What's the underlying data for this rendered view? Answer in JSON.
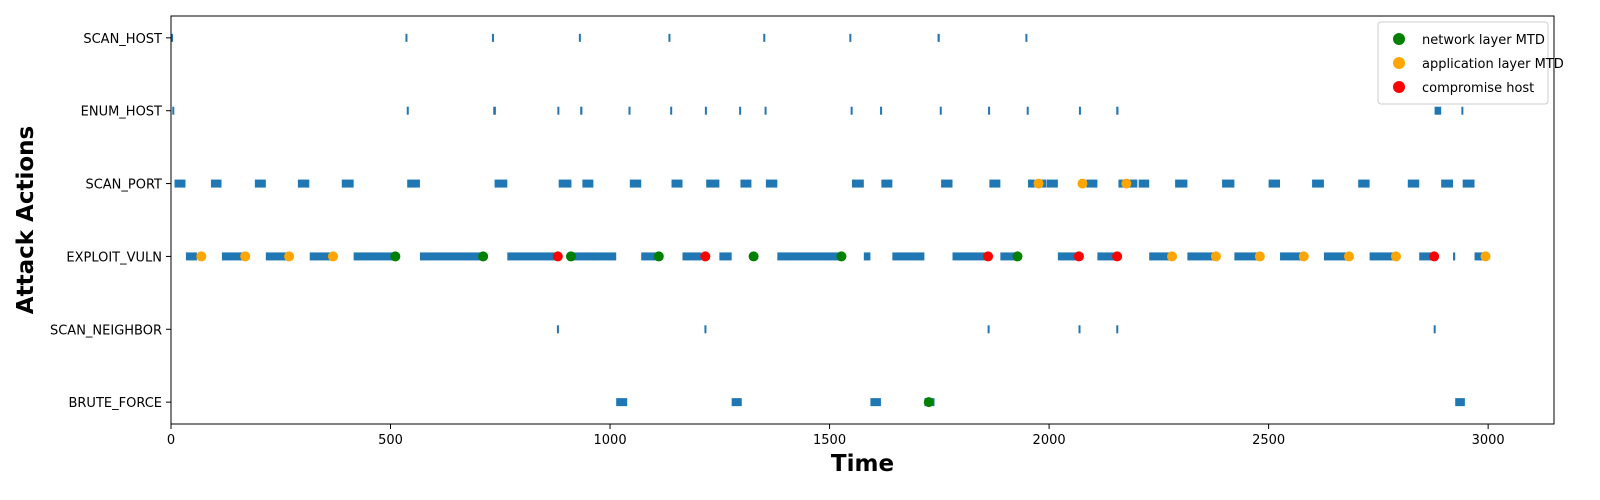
{
  "chart_data": {
    "type": "scatter",
    "xlabel": "Time",
    "ylabel": "Attack Actions",
    "xlim": [
      0,
      3150
    ],
    "x_ticks": [
      0,
      500,
      1000,
      1500,
      2000,
      2500,
      3000
    ],
    "categories": [
      "SCAN_HOST",
      "ENUM_HOST",
      "SCAN_PORT",
      "EXPLOIT_VULN",
      "SCAN_NEIGHBOR",
      "BRUTE_FORCE"
    ],
    "grid": false,
    "legend_position": "top-right",
    "action_color": "#1f77b4",
    "action_intervals": [
      {
        "action": "SCAN_HOST",
        "segments": [
          [
            0,
            3
          ],
          [
            534,
            537
          ],
          [
            731,
            734
          ],
          [
            929,
            932
          ],
          [
            1133,
            1137
          ],
          [
            1349,
            1352
          ],
          [
            1545,
            1548
          ],
          [
            1746,
            1751
          ],
          [
            1946,
            1949
          ]
        ]
      },
      {
        "action": "ENUM_HOST",
        "segments": [
          [
            3,
            7
          ],
          [
            537,
            540
          ],
          [
            734,
            740
          ],
          [
            880,
            883
          ],
          [
            932,
            937
          ],
          [
            1042,
            1045
          ],
          [
            1137,
            1140
          ],
          [
            1216,
            1219
          ],
          [
            1294,
            1297
          ],
          [
            1352,
            1355
          ],
          [
            1548,
            1551
          ],
          [
            1615,
            1618
          ],
          [
            1751,
            1754
          ],
          [
            1861,
            1864
          ],
          [
            1949,
            1952
          ],
          [
            2068,
            2071
          ],
          [
            2153,
            2158
          ],
          [
            2878,
            2893
          ],
          [
            2939,
            2942
          ]
        ]
      },
      {
        "action": "SCAN_PORT",
        "segments": [
          [
            8,
            33
          ],
          [
            91,
            115
          ],
          [
            191,
            216
          ],
          [
            289,
            315
          ],
          [
            389,
            416
          ],
          [
            538,
            567
          ],
          [
            737,
            766
          ],
          [
            883,
            912
          ],
          [
            937,
            962
          ],
          [
            1045,
            1071
          ],
          [
            1140,
            1165
          ],
          [
            1219,
            1249
          ],
          [
            1297,
            1322
          ],
          [
            1355,
            1381
          ],
          [
            1551,
            1578
          ],
          [
            1618,
            1643
          ],
          [
            1754,
            1780
          ],
          [
            1864,
            1889
          ],
          [
            1952,
            1967
          ],
          [
            1969,
            1994
          ],
          [
            1995,
            2020
          ],
          [
            2085,
            2110
          ],
          [
            2158,
            2172
          ],
          [
            2176,
            2201
          ],
          [
            2204,
            2228
          ],
          [
            2287,
            2315
          ],
          [
            2394,
            2422
          ],
          [
            2500,
            2526
          ],
          [
            2599,
            2626
          ],
          [
            2704,
            2730
          ],
          [
            2817,
            2843
          ],
          [
            2893,
            2920
          ],
          [
            2942,
            2969
          ]
        ]
      },
      {
        "action": "EXPLOIT_VULN",
        "segments": [
          [
            34,
            59
          ],
          [
            116,
            168
          ],
          [
            216,
            267
          ],
          [
            316,
            368
          ],
          [
            416,
            509
          ],
          [
            567,
            709
          ],
          [
            766,
            880
          ],
          [
            912,
            909
          ],
          [
            914,
            965
          ],
          [
            962,
            1014
          ],
          [
            1071,
            1110
          ],
          [
            1165,
            1208
          ],
          [
            1249,
            1277
          ],
          [
            1381,
            1525
          ],
          [
            1578,
            1593
          ],
          [
            1643,
            1716
          ],
          [
            1780,
            1858
          ],
          [
            1889,
            1925
          ],
          [
            2020,
            2066
          ],
          [
            2110,
            2150
          ],
          [
            2228,
            2280
          ],
          [
            2315,
            2380
          ],
          [
            2422,
            2478
          ],
          [
            2526,
            2581
          ],
          [
            2626,
            2678
          ],
          [
            2730,
            2790
          ],
          [
            2843,
            2872
          ],
          [
            2920,
            2925
          ],
          [
            2969,
            2989
          ]
        ]
      },
      {
        "action": "SCAN_NEIGHBOR",
        "segments": [
          [
            879,
            882
          ],
          [
            1215,
            1218
          ],
          [
            1860,
            1863
          ],
          [
            2067,
            2070
          ],
          [
            2153,
            2156
          ],
          [
            2876,
            2879
          ]
        ]
      },
      {
        "action": "BRUTE_FORCE",
        "segments": [
          [
            1014,
            1039
          ],
          [
            1277,
            1300
          ],
          [
            1593,
            1617
          ],
          [
            1716,
            1739
          ],
          [
            2925,
            2947
          ]
        ]
      }
    ],
    "series": [
      {
        "name": "network layer MTD",
        "color": "#008000",
        "marker": "circle",
        "points": [
          [
            511,
            "EXPLOIT_VULN"
          ],
          [
            711,
            "EXPLOIT_VULN"
          ],
          [
            911,
            "EXPLOIT_VULN"
          ],
          [
            1111,
            "EXPLOIT_VULN"
          ],
          [
            1327,
            "EXPLOIT_VULN"
          ],
          [
            1527,
            "EXPLOIT_VULN"
          ],
          [
            1726,
            "BRUTE_FORCE"
          ],
          [
            1928,
            "EXPLOIT_VULN"
          ]
        ]
      },
      {
        "name": "application layer MTD",
        "color": "#ffa500",
        "marker": "circle",
        "points": [
          [
            69,
            "EXPLOIT_VULN"
          ],
          [
            169,
            "EXPLOIT_VULN"
          ],
          [
            269,
            "EXPLOIT_VULN"
          ],
          [
            369,
            "EXPLOIT_VULN"
          ],
          [
            1976,
            "SCAN_PORT"
          ],
          [
            2076,
            "SCAN_PORT"
          ],
          [
            2176,
            "SCAN_PORT"
          ],
          [
            2280,
            "EXPLOIT_VULN"
          ],
          [
            2380,
            "EXPLOIT_VULN"
          ],
          [
            2480,
            "EXPLOIT_VULN"
          ],
          [
            2580,
            "EXPLOIT_VULN"
          ],
          [
            2683,
            "EXPLOIT_VULN"
          ],
          [
            2790,
            "EXPLOIT_VULN"
          ],
          [
            2994,
            "EXPLOIT_VULN"
          ]
        ]
      },
      {
        "name": "compromise host",
        "color": "#ff0000",
        "marker": "circle",
        "points": [
          [
            881,
            "EXPLOIT_VULN"
          ],
          [
            1217,
            "EXPLOIT_VULN"
          ],
          [
            1861,
            "EXPLOIT_VULN"
          ],
          [
            2068,
            "EXPLOIT_VULN"
          ],
          [
            2155,
            "EXPLOIT_VULN"
          ],
          [
            2877,
            "EXPLOIT_VULN"
          ]
        ]
      }
    ]
  }
}
